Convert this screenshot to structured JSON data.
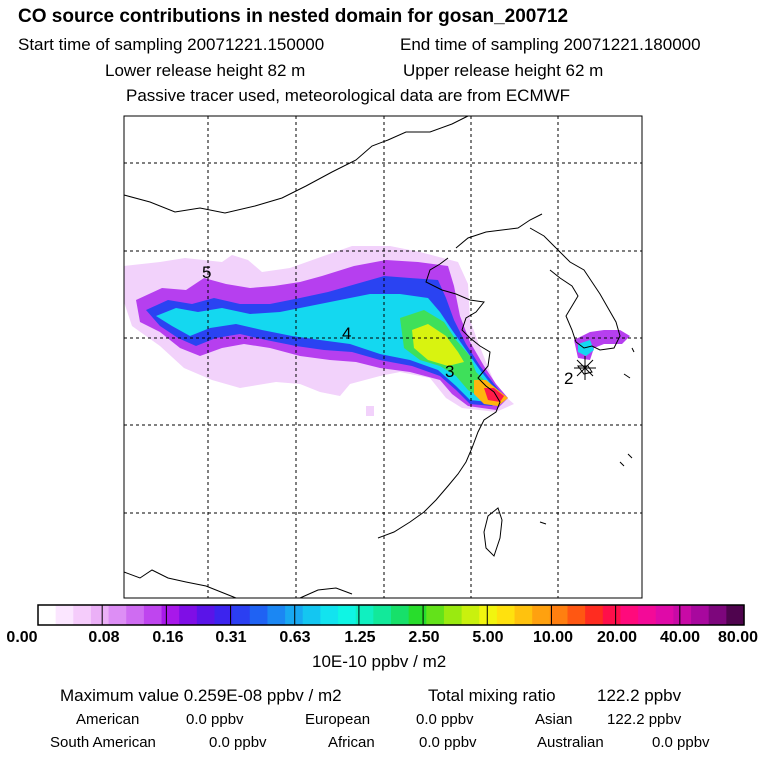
{
  "header": {
    "title": "CO  source contributions in nested domain for gosan_200712",
    "start": "Start time of sampling 20071221.150000",
    "end": "End time of sampling 20071221.180000",
    "lower": "Lower release height   82 m",
    "upper": "Upper release height   62 m",
    "note": "Passive tracer used, meteorological data are from ECMWF"
  },
  "map": {
    "labels": [
      "5",
      "4",
      "3",
      "2"
    ]
  },
  "colorbar": {
    "ticks": [
      "0.00",
      "0.08",
      "0.16",
      "0.31",
      "0.63",
      "1.25",
      "2.50",
      "5.00",
      "10.00",
      "20.00",
      "40.00",
      "80.00"
    ],
    "colors": [
      "#ffffff",
      "#fbe6ff",
      "#f5ccfb",
      "#ebb0f7",
      "#dd8ef5",
      "#cf6cf2",
      "#bf45ef",
      "#a818ea",
      "#7f0ee6",
      "#5a14e8",
      "#3c24ee",
      "#2b3ff2",
      "#1f62f3",
      "#1b87f3",
      "#18a8f2",
      "#14c6f1",
      "#12e3ef",
      "#0ff5e4",
      "#10f0c0",
      "#12e99a",
      "#17e06a",
      "#28dd2c",
      "#63e21a",
      "#9aea10",
      "#c9f10e",
      "#f2f50f",
      "#ffe10e",
      "#ffc20e",
      "#ffa10f",
      "#ff7f10",
      "#ff5712",
      "#ff2c20",
      "#ff0f4a",
      "#ff0a7c",
      "#f30a98",
      "#df0aa8",
      "#c80aa6",
      "#a8089e",
      "#7d067c",
      "#4f044e"
    ],
    "unit": "10E-10 ppbv / m2"
  },
  "stats": {
    "maximum": "Maximum value  0.259E-08 ppbv / m2",
    "total_label": "Total mixing ratio",
    "total_value": "122.2 ppbv",
    "row1": [
      "American",
      "0.0 ppbv",
      "European",
      "0.0 ppbv",
      "Asian",
      "122.2 ppbv"
    ],
    "row2": [
      "South American",
      "0.0 ppbv",
      "African",
      "0.0 ppbv",
      "Australian",
      "0.0 ppbv"
    ]
  },
  "chart_data": {
    "type": "heatmap",
    "title": "CO  source contributions in nested domain for gosan_200712",
    "colorbar_ticks": [
      0.0,
      0.08,
      0.16,
      0.31,
      0.63,
      1.25,
      2.5,
      5.0,
      10.0,
      20.0,
      40.0,
      80.0
    ],
    "colorbar_unit": "10E-10 ppbv / m2",
    "max_value": "0.259E-08 ppbv / m2",
    "map_labels": [
      "5",
      "4",
      "3",
      "2"
    ],
    "grid": true
  }
}
